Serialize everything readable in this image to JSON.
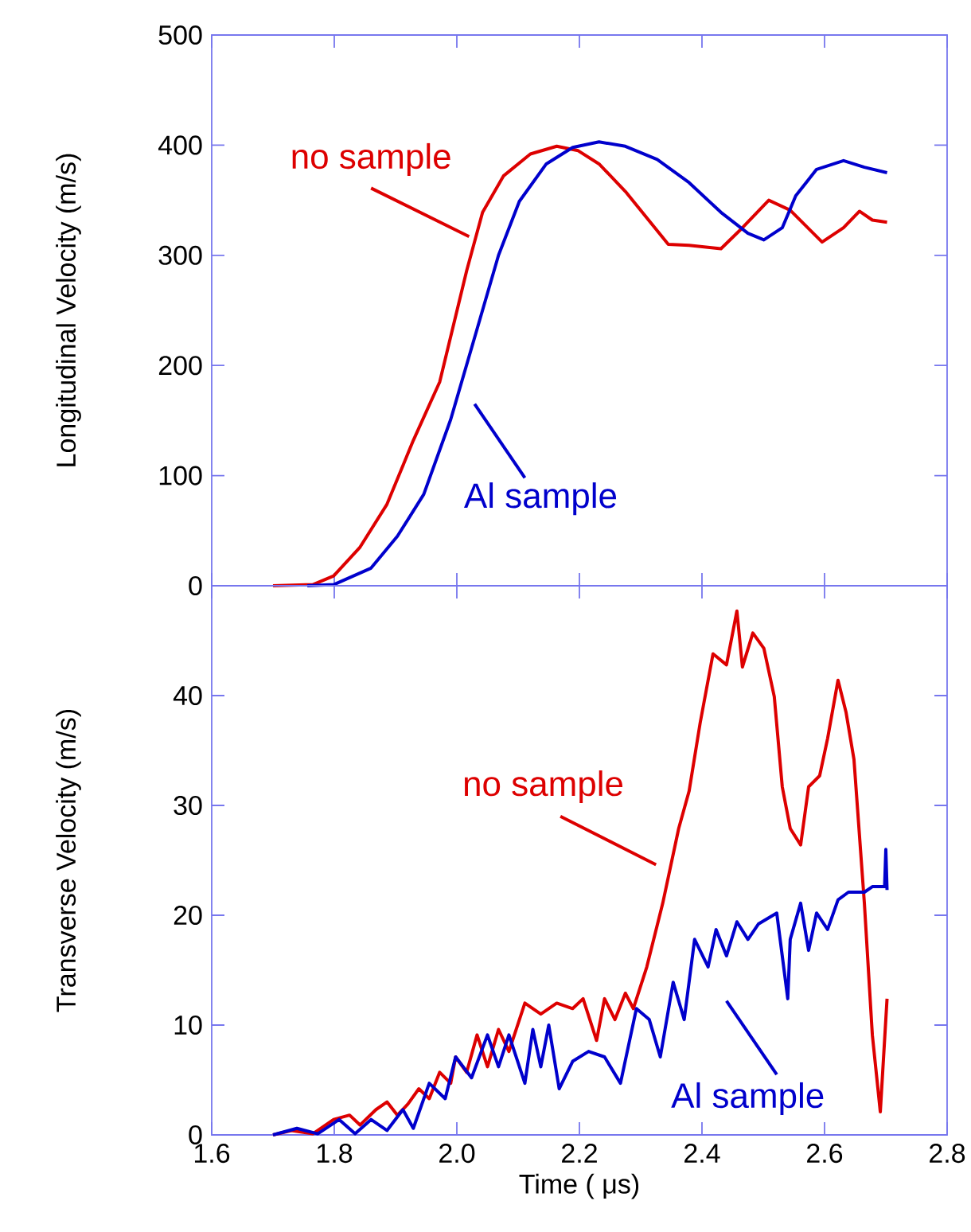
{
  "chart_data": [
    {
      "type": "line",
      "ylabel": "Longitudinal Velocity (m/s)",
      "xlim": [
        1.6,
        2.8
      ],
      "xticks": [
        1.6,
        1.8,
        2,
        2.2,
        2.4,
        2.6,
        2.8
      ],
      "ylim": [
        0,
        500
      ],
      "yticks": [
        0,
        100,
        200,
        300,
        400,
        500
      ],
      "tick_labels": "y",
      "series": [
        {
          "name": "no sample",
          "color": "#dd0000",
          "x": [
            1.7,
            1.765,
            1.799,
            1.842,
            1.886,
            1.929,
            1.972,
            2.016,
            2.042,
            2.076,
            2.12,
            2.163,
            2.198,
            2.232,
            2.275,
            2.31,
            2.345,
            2.379,
            2.431,
            2.466,
            2.509,
            2.544,
            2.596,
            2.631,
            2.657,
            2.678,
            2.702
          ],
          "values": [
            0,
            1,
            9,
            35,
            74,
            132,
            185,
            286,
            339,
            372,
            392,
            399,
            395,
            383,
            358,
            334,
            310,
            309,
            306,
            325,
            350,
            341,
            312,
            325,
            340,
            332,
            330
          ]
        },
        {
          "name": "Al sample",
          "color": "#0000cc",
          "x": [
            1.756,
            1.799,
            1.86,
            1.903,
            1.946,
            1.99,
            2.033,
            2.068,
            2.102,
            2.146,
            2.189,
            2.232,
            2.275,
            2.327,
            2.379,
            2.431,
            2.475,
            2.501,
            2.531,
            2.553,
            2.587,
            2.631,
            2.665,
            2.702
          ],
          "values": [
            0,
            1,
            16,
            45,
            83,
            151,
            233,
            300,
            349,
            383,
            398,
            403,
            399,
            387,
            366,
            339,
            320,
            314,
            325,
            354,
            378,
            386,
            380,
            375
          ]
        }
      ]
    },
    {
      "type": "line",
      "xlabel": "Time ( μs)",
      "ylabel": "Transverse Velocity (m/s)",
      "xlim": [
        1.6,
        2.8
      ],
      "xticks": [
        1.6,
        1.8,
        {
          "value": 2.0,
          "label": "2.0"
        },
        2.2,
        2.4,
        2.6,
        2.8
      ],
      "ylim": [
        0,
        50
      ],
      "yticks": [
        0,
        10,
        20,
        30,
        40
      ],
      "series": [
        {
          "name": "no sample",
          "color": "#dd0000",
          "x": [
            1.7,
            1.73,
            1.765,
            1.799,
            1.825,
            1.842,
            1.868,
            1.886,
            1.903,
            1.92,
            1.938,
            1.955,
            1.972,
            1.99,
            1.998,
            2.016,
            2.033,
            2.05,
            2.068,
            2.085,
            2.111,
            2.137,
            2.163,
            2.189,
            2.206,
            2.228,
            2.241,
            2.258,
            2.275,
            2.288,
            2.31,
            2.336,
            2.362,
            2.379,
            2.397,
            2.418,
            2.44,
            2.457,
            2.466,
            2.483,
            2.501,
            2.518,
            2.531,
            2.544,
            2.561,
            2.574,
            2.592,
            2.605,
            2.622,
            2.635,
            2.648,
            2.665,
            2.678,
            2.691,
            2.702
          ],
          "values": [
            0,
            0.4,
            0.1,
            1.4,
            1.8,
            0.9,
            2.3,
            3.0,
            1.8,
            2.8,
            4.2,
            3.3,
            5.7,
            4.7,
            7.1,
            5.7,
            9.1,
            6.2,
            9.6,
            7.6,
            12.0,
            11.0,
            12.0,
            11.5,
            12.4,
            8.6,
            12.4,
            10.5,
            12.9,
            11.5,
            15.3,
            21.1,
            27.9,
            31.3,
            37.5,
            43.8,
            42.8,
            47.7,
            42.6,
            45.7,
            44.3,
            39.9,
            31.7,
            27.9,
            26.4,
            31.7,
            32.7,
            36.1,
            41.4,
            38.5,
            34.2,
            21.1,
            9.1,
            2.1,
            12.4
          ]
        },
        {
          "name": "Al sample",
          "color": "#0000cc",
          "x": [
            1.7,
            1.739,
            1.773,
            1.808,
            1.834,
            1.86,
            1.886,
            1.912,
            1.929,
            1.955,
            1.981,
            1.998,
            2.024,
            2.05,
            2.068,
            2.085,
            2.111,
            2.124,
            2.137,
            2.15,
            2.167,
            2.189,
            2.215,
            2.241,
            2.267,
            2.293,
            2.314,
            2.332,
            2.353,
            2.371,
            2.388,
            2.41,
            2.423,
            2.44,
            2.457,
            2.475,
            2.492,
            2.522,
            2.54,
            2.544,
            2.561,
            2.574,
            2.587,
            2.605,
            2.622,
            2.639,
            2.665,
            2.678,
            2.698,
            2.7,
            2.702
          ],
          "values": [
            0,
            0.6,
            0.1,
            1.4,
            0.1,
            1.4,
            0.4,
            2.3,
            0.6,
            4.7,
            3.3,
            7.1,
            5.2,
            9.1,
            6.2,
            9.1,
            4.7,
            9.6,
            6.2,
            10.0,
            4.2,
            6.7,
            7.6,
            7.1,
            4.7,
            11.5,
            10.5,
            7.1,
            13.9,
            10.5,
            17.8,
            15.3,
            18.7,
            16.3,
            19.4,
            17.8,
            19.2,
            20.2,
            12.4,
            17.8,
            21.1,
            16.8,
            20.2,
            18.7,
            21.4,
            22.1,
            22.1,
            22.6,
            22.6,
            26.0,
            22.3
          ]
        }
      ]
    }
  ]
}
